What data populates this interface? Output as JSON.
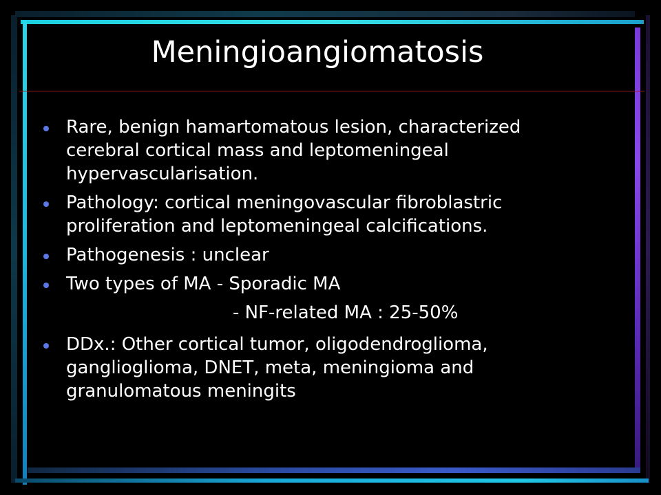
{
  "slide": {
    "title": "Meningioangiomatosis",
    "bullets": [
      {
        "text": "Rare, benign hamartomatous lesion, characterized cerebral cortical mass and leptomeningeal hypervascularisation.",
        "bulleted": true
      },
      {
        "text": "Pathology: cortical meningovascular fibroblastric proliferation and leptomeningeal calcifications.",
        "bulleted": true
      },
      {
        "text": "Pathogenesis : unclear",
        "bulleted": true
      },
      {
        "text": "Two types of MA - Sporadic MA",
        "bulleted": true
      },
      {
        "text": "- NF-related MA : 25-50%",
        "bulleted": false
      },
      {
        "text": "DDx.: Other cortical tumor, oligodendroglioma, ganglioglioma, DNET, meta, meningioma and granulomatous meningits",
        "bulleted": true
      }
    ]
  },
  "colors": {
    "background": "#000000",
    "text": "#ffffff",
    "bullet": "#5a78e8",
    "rule": "#a01818",
    "frame_cyan": "#1ad0e0",
    "frame_purple": "#7a3ad8"
  }
}
